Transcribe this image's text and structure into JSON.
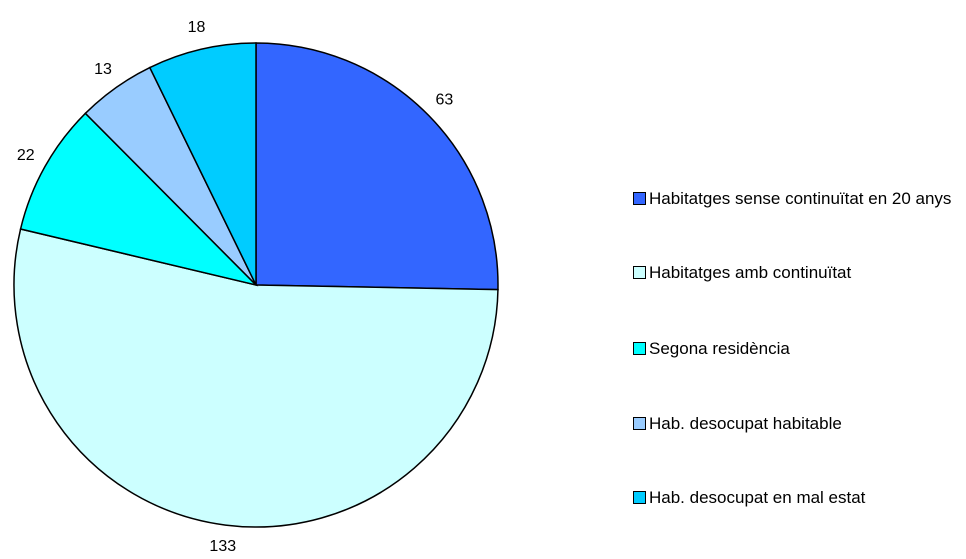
{
  "chart_data": {
    "type": "pie",
    "categories": [
      "Habitatges sense continuïtat en 20 anys",
      "Habitatges amb continuïtat",
      "Segona residència",
      "Hab. desocupat habitable",
      "Hab. desocupat en mal estat"
    ],
    "values": [
      63,
      133,
      22,
      13,
      18
    ],
    "colors": [
      "#3366ff",
      "#ccffff",
      "#00ffff",
      "#99ccff",
      "#00ccff"
    ],
    "legend": "right"
  }
}
